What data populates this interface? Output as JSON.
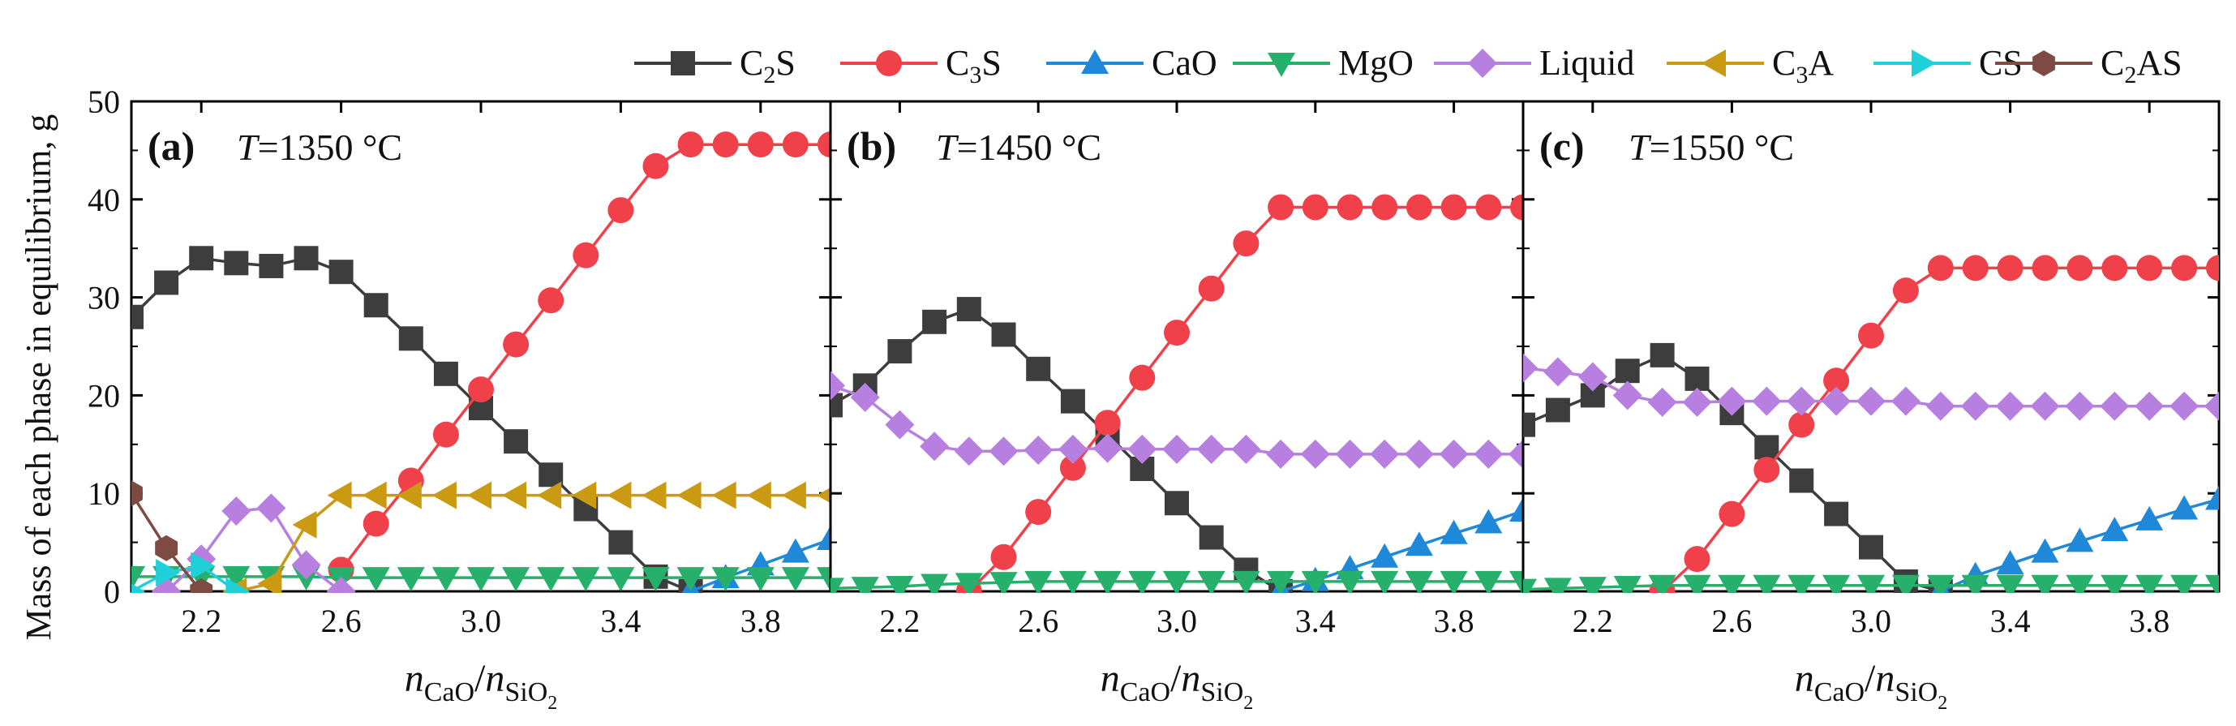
{
  "figure": {
    "ylabel": "Mass of each phase in equilibrium, g",
    "xlabel_parts": {
      "n1": "n",
      "sub1": "CaO",
      "slash": "/",
      "n2": "n",
      "sub2a": "SiO",
      "sub2b": "2"
    }
  },
  "legend": [
    {
      "key": "C2S",
      "main": "C",
      "sub": "2",
      "tail": "S",
      "color": "#3d3d3d",
      "marker": "square"
    },
    {
      "key": "C3S",
      "main": "C",
      "sub": "3",
      "tail": "S",
      "color": "#f0404a",
      "marker": "circle"
    },
    {
      "key": "CaO",
      "main": "CaO",
      "sub": "",
      "tail": "",
      "color": "#1f88d8",
      "marker": "triangle-up"
    },
    {
      "key": "MgO",
      "main": "MgO",
      "sub": "",
      "tail": "",
      "color": "#27b06b",
      "marker": "triangle-down"
    },
    {
      "key": "Liquid",
      "main": "Liquid",
      "sub": "",
      "tail": "",
      "color": "#b67fe0",
      "marker": "diamond"
    },
    {
      "key": "C3A",
      "main": "C",
      "sub": "3",
      "tail": "A",
      "color": "#c99a12",
      "marker": "triangle-left"
    },
    {
      "key": "CS",
      "main": "CS",
      "sub": "",
      "tail": "",
      "color": "#1fd0d8",
      "marker": "triangle-right"
    },
    {
      "key": "C2AS",
      "main": "C",
      "sub": "2",
      "tail": "AS",
      "color": "#7d4a44",
      "marker": "hexagon"
    }
  ],
  "chart_data": [
    {
      "type": "line",
      "panel_label": "(a)",
      "temp_symbol": "T",
      "temp_value": "=1350 °C",
      "x": [
        2.0,
        2.1,
        2.2,
        2.3,
        2.4,
        2.5,
        2.6,
        2.7,
        2.8,
        2.9,
        3.0,
        3.1,
        3.2,
        3.3,
        3.4,
        3.5,
        3.6,
        3.7,
        3.8,
        3.9,
        4.0
      ],
      "xlim": [
        2.0,
        4.0
      ],
      "ylim": [
        0,
        50
      ],
      "xticks": [
        2.2,
        2.6,
        3.0,
        3.4,
        3.8
      ],
      "xtick_labels": [
        "2.2",
        "2.6",
        "3.0",
        "3.4",
        "3.8"
      ],
      "yticks": [
        0,
        10,
        20,
        30,
        40,
        50
      ],
      "ytick_labels": [
        "0",
        "10",
        "20",
        "30",
        "40",
        "50"
      ],
      "series": [
        {
          "name": "C2S",
          "values": [
            28.0,
            31.5,
            34.0,
            33.5,
            33.2,
            34.0,
            32.6,
            29.2,
            25.8,
            22.2,
            18.7,
            15.3,
            11.9,
            8.4,
            5.0,
            1.5,
            0,
            null,
            null,
            null,
            null
          ]
        },
        {
          "name": "C3S",
          "values": [
            null,
            null,
            null,
            null,
            null,
            null,
            2.2,
            6.9,
            11.3,
            16.0,
            20.6,
            25.2,
            29.7,
            34.3,
            38.9,
            43.4,
            45.6,
            45.6,
            45.6,
            45.6,
            45.6
          ]
        },
        {
          "name": "CaO",
          "values": [
            null,
            null,
            null,
            null,
            null,
            null,
            null,
            null,
            null,
            null,
            null,
            null,
            null,
            null,
            null,
            null,
            0,
            1.4,
            2.7,
            4.0,
            5.3
          ]
        },
        {
          "name": "MgO",
          "values": [
            1.5,
            1.5,
            1.5,
            1.5,
            1.5,
            1.5,
            1.4,
            1.4,
            1.4,
            1.4,
            1.4,
            1.4,
            1.4,
            1.4,
            1.4,
            1.4,
            1.4,
            1.4,
            1.4,
            1.4,
            1.4
          ]
        },
        {
          "name": "Liquid",
          "values": [
            null,
            0,
            3.3,
            8.2,
            8.5,
            2.7,
            0,
            null,
            null,
            null,
            null,
            null,
            null,
            null,
            null,
            null,
            null,
            null,
            null,
            null,
            null
          ]
        },
        {
          "name": "C3A",
          "values": [
            null,
            null,
            null,
            0,
            0.8,
            6.8,
            9.8,
            9.8,
            9.8,
            9.8,
            9.8,
            9.8,
            9.8,
            9.8,
            9.8,
            9.8,
            9.8,
            9.8,
            9.8,
            9.8,
            9.8
          ]
        },
        {
          "name": "CS",
          "values": [
            0,
            1.9,
            2.6,
            0,
            null,
            null,
            null,
            null,
            null,
            null,
            null,
            null,
            null,
            null,
            null,
            null,
            null,
            null,
            null,
            null,
            null
          ]
        },
        {
          "name": "C2AS",
          "values": [
            10.0,
            4.4,
            0,
            null,
            null,
            null,
            null,
            null,
            null,
            null,
            null,
            null,
            null,
            null,
            null,
            null,
            null,
            null,
            null,
            null,
            null
          ]
        }
      ]
    },
    {
      "type": "line",
      "panel_label": "(b)",
      "temp_symbol": "T",
      "temp_value": "=1450 °C",
      "x": [
        2.0,
        2.1,
        2.2,
        2.3,
        2.4,
        2.5,
        2.6,
        2.7,
        2.8,
        2.9,
        3.0,
        3.1,
        3.2,
        3.3,
        3.4,
        3.5,
        3.6,
        3.7,
        3.8,
        3.9,
        4.0
      ],
      "xlim": [
        2.0,
        4.0
      ],
      "ylim": [
        0,
        50
      ],
      "xticks": [
        2.2,
        2.6,
        3.0,
        3.4,
        3.8
      ],
      "xtick_labels": [
        "2.2",
        "2.6",
        "3.0",
        "3.4",
        "3.8"
      ],
      "yticks": [
        0,
        10,
        20,
        30,
        40,
        50
      ],
      "series": [
        {
          "name": "C2S",
          "values": [
            19.0,
            21.0,
            24.5,
            27.5,
            28.8,
            26.2,
            22.7,
            19.4,
            16.0,
            12.5,
            9.0,
            5.5,
            2.2,
            0,
            null,
            null,
            null,
            null,
            null,
            null,
            null
          ]
        },
        {
          "name": "C3S",
          "values": [
            null,
            null,
            null,
            null,
            0,
            3.5,
            8.1,
            12.6,
            17.2,
            21.8,
            26.4,
            30.9,
            35.5,
            39.2,
            39.2,
            39.2,
            39.2,
            39.2,
            39.2,
            39.2,
            39.2
          ]
        },
        {
          "name": "CaO",
          "values": [
            null,
            null,
            null,
            null,
            null,
            null,
            null,
            null,
            null,
            null,
            null,
            null,
            null,
            0,
            1.1,
            2.3,
            3.5,
            4.7,
            5.9,
            7.0,
            8.2
          ]
        },
        {
          "name": "MgO",
          "values": [
            0.3,
            0.4,
            0.5,
            0.7,
            0.8,
            0.9,
            1.0,
            1.0,
            1.0,
            1.0,
            1.0,
            1.0,
            1.0,
            1.0,
            1.0,
            1.0,
            1.0,
            1.0,
            1.0,
            1.0,
            1.0
          ]
        },
        {
          "name": "Liquid",
          "values": [
            21.0,
            19.8,
            17.0,
            14.8,
            14.3,
            14.3,
            14.4,
            14.5,
            14.6,
            14.5,
            14.5,
            14.5,
            14.5,
            14.0,
            14.0,
            14.0,
            14.0,
            14.0,
            14.0,
            14.0,
            14.0
          ]
        }
      ]
    },
    {
      "type": "line",
      "panel_label": "(c)",
      "temp_symbol": "T",
      "temp_value": "=1550 °C",
      "x": [
        2.0,
        2.1,
        2.2,
        2.3,
        2.4,
        2.5,
        2.6,
        2.7,
        2.8,
        2.9,
        3.0,
        3.1,
        3.2,
        3.3,
        3.4,
        3.5,
        3.6,
        3.7,
        3.8,
        3.9,
        4.0
      ],
      "xlim": [
        2.0,
        4.0
      ],
      "ylim": [
        0,
        50
      ],
      "xticks": [
        2.2,
        2.6,
        3.0,
        3.4,
        3.8
      ],
      "xtick_labels": [
        "2.2",
        "2.6",
        "3.0",
        "3.4",
        "3.8"
      ],
      "yticks": [
        0,
        10,
        20,
        30,
        40,
        50
      ],
      "series": [
        {
          "name": "C2S",
          "values": [
            17.0,
            18.5,
            20.0,
            22.5,
            24.1,
            21.7,
            18.2,
            14.7,
            11.3,
            7.9,
            4.5,
            1.0,
            0,
            null,
            null,
            null,
            null,
            null,
            null,
            null,
            null
          ]
        },
        {
          "name": "C3S",
          "values": [
            null,
            null,
            null,
            null,
            0,
            3.3,
            7.9,
            12.4,
            17.0,
            21.5,
            26.1,
            30.7,
            33.0,
            33.0,
            33.0,
            33.0,
            33.0,
            33.0,
            33.0,
            33.0,
            33.0
          ]
        },
        {
          "name": "CaO",
          "values": [
            null,
            null,
            null,
            null,
            null,
            null,
            null,
            null,
            null,
            null,
            null,
            null,
            0,
            1.6,
            2.8,
            4.0,
            5.1,
            6.2,
            7.3,
            8.4,
            9.4
          ]
        },
        {
          "name": "MgO",
          "values": [
            0.2,
            0.3,
            0.4,
            0.5,
            0.6,
            0.6,
            0.6,
            0.6,
            0.6,
            0.6,
            0.6,
            0.6,
            0.6,
            0.6,
            0.6,
            0.6,
            0.6,
            0.6,
            0.6,
            0.6,
            0.6
          ]
        },
        {
          "name": "Liquid",
          "values": [
            22.8,
            22.4,
            21.9,
            20.0,
            19.3,
            19.3,
            19.4,
            19.4,
            19.4,
            19.4,
            19.4,
            19.4,
            18.9,
            18.9,
            18.9,
            18.9,
            18.9,
            18.9,
            18.9,
            18.9,
            18.9
          ]
        }
      ]
    }
  ]
}
